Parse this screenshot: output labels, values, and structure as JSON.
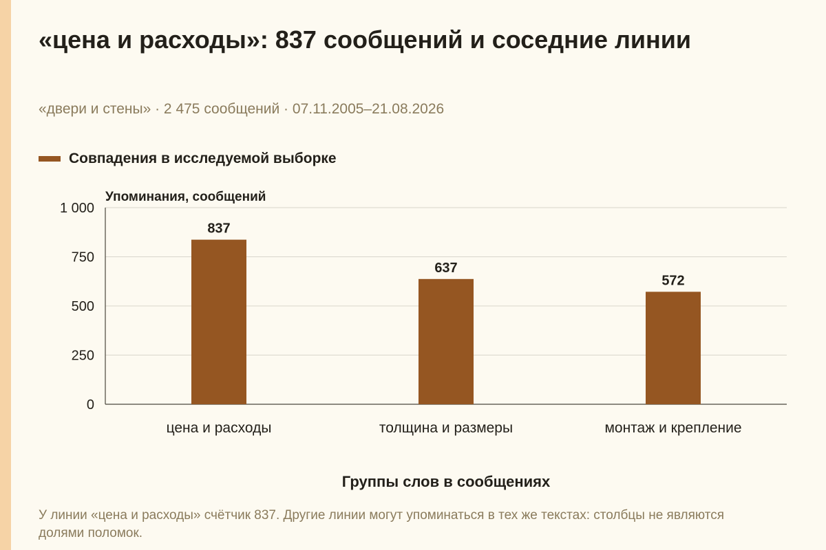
{
  "page": {
    "title": "«цена и расходы»: 837 сообщений и соседние линии",
    "subtitle": "«двери и стены» · 2 475 сообщений · 07.11.2005–21.08.2026",
    "footnote": "У линии «цена и расходы» счётчик 837. Другие линии могут упоминаться в тех же текстах: столбцы не являются долями поломок."
  },
  "colors": {
    "bar": "#955622",
    "accent_stripe": "#f6d3a6",
    "background": "#fdfaf1",
    "grid": "#d9d6cc",
    "axis": "#4a463d",
    "text": "#23201a",
    "muted_text": "#8a7b5c"
  },
  "chart_data": {
    "type": "bar",
    "categories": [
      "цена и расходы",
      "толщина и размеры",
      "монтаж и крепление"
    ],
    "series": [
      {
        "name": "Совпадения в исследуемой выборке",
        "values": [
          837,
          637,
          572
        ]
      }
    ],
    "xlabel": "Группы слов в сообщениях",
    "ylabel": "Упоминания, сообщений",
    "ylim": [
      0,
      1000
    ],
    "yticks": [
      0,
      250,
      500,
      750,
      1000
    ],
    "ytick_labels": [
      "0",
      "250",
      "500",
      "750",
      "1 000"
    ],
    "data_labels": [
      "837",
      "637",
      "572"
    ],
    "grid": true,
    "legend_position": "top-left"
  }
}
